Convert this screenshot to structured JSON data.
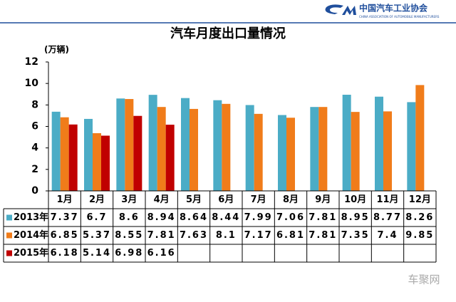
{
  "header": {
    "org": "中国汽车工业协会",
    "org_en": "CHINA ASSOCIATION OF AUTOMOBILE MANUFACTURERS"
  },
  "watermark": "车聚网",
  "chart_data": {
    "type": "bar",
    "title": "汽车月度出口量情况",
    "y_label": "(万辆)",
    "categories": [
      "1月",
      "2月",
      "3月",
      "4月",
      "5月",
      "6月",
      "7月",
      "8月",
      "9月",
      "10月",
      "11月",
      "12月"
    ],
    "series": [
      {
        "name": "2013年",
        "color": "#4bacc6",
        "values": [
          7.37,
          6.7,
          8.6,
          8.94,
          8.64,
          8.44,
          7.99,
          7.06,
          7.81,
          8.95,
          8.77,
          8.26
        ]
      },
      {
        "name": "2014年",
        "color": "#f07c1a",
        "values": [
          6.85,
          5.37,
          8.55,
          7.81,
          7.63,
          8.1,
          7.17,
          6.81,
          7.81,
          7.35,
          7.4,
          9.85
        ]
      },
      {
        "name": "2015年",
        "color": "#c00000",
        "values": [
          6.18,
          5.14,
          6.98,
          6.16,
          null,
          null,
          null,
          null,
          null,
          null,
          null,
          null
        ]
      }
    ],
    "ylim": [
      0,
      12
    ],
    "yticks": [
      0,
      2,
      4,
      6,
      8,
      10,
      12
    ],
    "grid": false
  }
}
